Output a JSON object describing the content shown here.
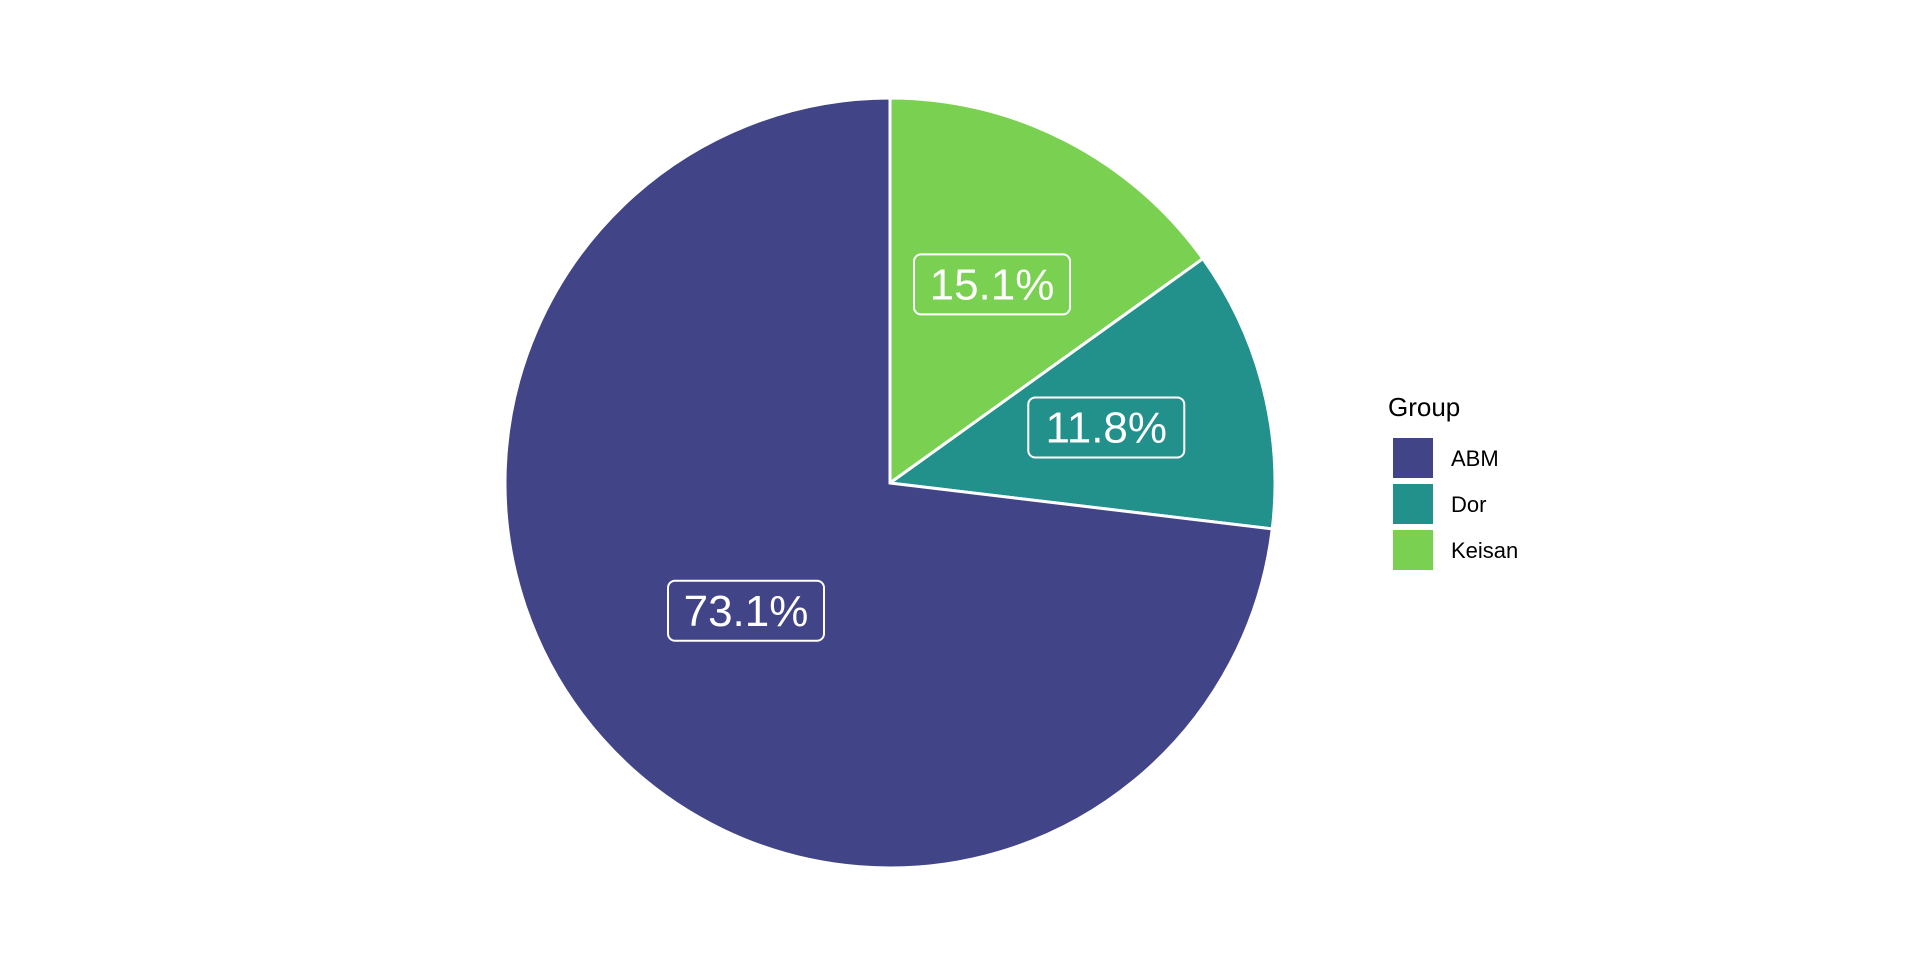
{
  "chart_data": {
    "type": "pie",
    "title": "",
    "legend": {
      "title": "Group",
      "position": "right"
    },
    "categories": [
      "ABM",
      "Dor",
      "Keisan"
    ],
    "values": [
      73.1,
      11.8,
      15.1
    ],
    "labels": [
      "73.1%",
      "11.8%",
      "15.1%"
    ],
    "colors": [
      "#414487",
      "#22908B",
      "#7AD151"
    ],
    "start_angle_deg": 0,
    "direction": "counterclockwise"
  }
}
